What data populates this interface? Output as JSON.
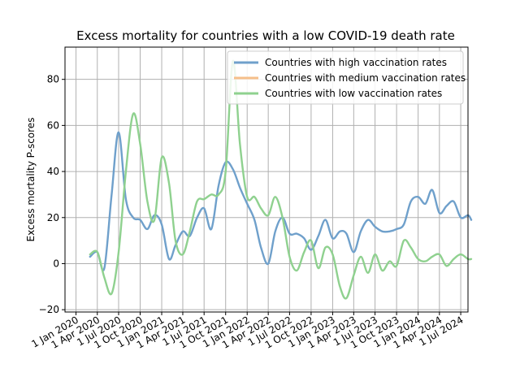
{
  "chart_data": {
    "type": "line",
    "title": "Excess mortality for countries with a low COVID-19 death rate",
    "xlabel": "",
    "ylabel": "Excess mortality P-scores",
    "xlim": [
      "2019-11-15",
      "2024-08-01"
    ],
    "ylim": [
      -21,
      94
    ],
    "x_ticks": [
      {
        "date": "2020-01-01",
        "label": "1 Jan 2020"
      },
      {
        "date": "2020-04-01",
        "label": "1 Apr 2020"
      },
      {
        "date": "2020-07-01",
        "label": "1 Jul 2020"
      },
      {
        "date": "2020-10-01",
        "label": "1 Oct 2020"
      },
      {
        "date": "2021-01-01",
        "label": "1 Jan 2021"
      },
      {
        "date": "2021-04-01",
        "label": "1 Apr 2021"
      },
      {
        "date": "2021-07-01",
        "label": "1 Jul 2021"
      },
      {
        "date": "2021-10-01",
        "label": "1 Oct 2021"
      },
      {
        "date": "2022-01-01",
        "label": "1 Jan 2022"
      },
      {
        "date": "2022-04-01",
        "label": "1 Apr 2022"
      },
      {
        "date": "2022-07-01",
        "label": "1 Jul 2022"
      },
      {
        "date": "2022-10-01",
        "label": "1 Oct 2022"
      },
      {
        "date": "2023-01-01",
        "label": "1 Jan 2023"
      },
      {
        "date": "2023-04-01",
        "label": "1 Apr 2023"
      },
      {
        "date": "2023-07-01",
        "label": "1 Jul 2023"
      },
      {
        "date": "2023-10-01",
        "label": "1 Oct 2023"
      },
      {
        "date": "2024-01-01",
        "label": "1 Jan 2024"
      },
      {
        "date": "2024-04-01",
        "label": "1 Apr 2024"
      },
      {
        "date": "2024-07-01",
        "label": "1 Jul 2024"
      }
    ],
    "y_ticks": [
      {
        "value": -20,
        "label": "−20"
      },
      {
        "value": 0,
        "label": "0"
      },
      {
        "value": 20,
        "label": "20"
      },
      {
        "value": 40,
        "label": "40"
      },
      {
        "value": 60,
        "label": "60"
      },
      {
        "value": 80,
        "label": "80"
      }
    ],
    "grid": true,
    "legend_position": "top-right",
    "series": [
      {
        "name": "Countries with high vaccination rates",
        "color": "#6fa0cb",
        "points": [
          [
            "2020-03-01",
            3
          ],
          [
            "2020-04-01",
            5
          ],
          [
            "2020-05-01",
            -2
          ],
          [
            "2020-06-01",
            30
          ],
          [
            "2020-07-01",
            57
          ],
          [
            "2020-08-01",
            28
          ],
          [
            "2020-09-01",
            20
          ],
          [
            "2020-10-01",
            19
          ],
          [
            "2020-11-01",
            15
          ],
          [
            "2020-12-01",
            21
          ],
          [
            "2021-01-01",
            17
          ],
          [
            "2021-02-01",
            2
          ],
          [
            "2021-03-01",
            8
          ],
          [
            "2021-04-01",
            14
          ],
          [
            "2021-05-01",
            12
          ],
          [
            "2021-06-01",
            20
          ],
          [
            "2021-07-01",
            24
          ],
          [
            "2021-08-01",
            15
          ],
          [
            "2021-09-01",
            34
          ],
          [
            "2021-10-01",
            44
          ],
          [
            "2021-11-01",
            41
          ],
          [
            "2021-12-01",
            33
          ],
          [
            "2022-01-01",
            26
          ],
          [
            "2022-02-01",
            19
          ],
          [
            "2022-03-01",
            7
          ],
          [
            "2022-04-01",
            0
          ],
          [
            "2022-05-01",
            14
          ],
          [
            "2022-06-01",
            20
          ],
          [
            "2022-07-01",
            13
          ],
          [
            "2022-08-01",
            13
          ],
          [
            "2022-09-01",
            11
          ],
          [
            "2022-10-01",
            6
          ],
          [
            "2022-11-01",
            12
          ],
          [
            "2022-12-01",
            19
          ],
          [
            "2023-01-01",
            11
          ],
          [
            "2023-02-01",
            14
          ],
          [
            "2023-03-01",
            13
          ],
          [
            "2023-04-01",
            5
          ],
          [
            "2023-05-01",
            14
          ],
          [
            "2023-06-01",
            19
          ],
          [
            "2023-07-01",
            16
          ],
          [
            "2023-08-01",
            14
          ],
          [
            "2023-09-01",
            14
          ],
          [
            "2023-10-01",
            15
          ],
          [
            "2023-11-01",
            17
          ],
          [
            "2023-12-01",
            27
          ],
          [
            "2024-01-01",
            29
          ],
          [
            "2024-02-01",
            26
          ],
          [
            "2024-03-01",
            32
          ],
          [
            "2024-04-01",
            22
          ],
          [
            "2024-05-01",
            25
          ],
          [
            "2024-06-01",
            27
          ],
          [
            "2024-07-01",
            20
          ],
          [
            "2024-08-01",
            21
          ],
          [
            "2024-08-15",
            19
          ]
        ]
      },
      {
        "name": "Countries with medium vaccination rates",
        "color": "#f6bf8a",
        "points": []
      },
      {
        "name": "Countries with low vaccination rates",
        "color": "#8fd18f",
        "points": [
          [
            "2020-03-01",
            4
          ],
          [
            "2020-04-01",
            5
          ],
          [
            "2020-05-01",
            -6
          ],
          [
            "2020-06-01",
            -13
          ],
          [
            "2020-07-01",
            5
          ],
          [
            "2020-08-01",
            40
          ],
          [
            "2020-09-01",
            65
          ],
          [
            "2020-10-01",
            52
          ],
          [
            "2020-11-01",
            27
          ],
          [
            "2020-12-01",
            19
          ],
          [
            "2021-01-01",
            46
          ],
          [
            "2021-02-01",
            35
          ],
          [
            "2021-03-01",
            10
          ],
          [
            "2021-04-01",
            4
          ],
          [
            "2021-05-01",
            14
          ],
          [
            "2021-06-01",
            27
          ],
          [
            "2021-07-01",
            28
          ],
          [
            "2021-08-01",
            30
          ],
          [
            "2021-09-01",
            30
          ],
          [
            "2021-10-01",
            40
          ],
          [
            "2021-11-01",
            88
          ],
          [
            "2021-12-01",
            52
          ],
          [
            "2022-01-01",
            29
          ],
          [
            "2022-02-01",
            29
          ],
          [
            "2022-03-01",
            24
          ],
          [
            "2022-04-01",
            21
          ],
          [
            "2022-05-01",
            29
          ],
          [
            "2022-06-01",
            20
          ],
          [
            "2022-07-01",
            3
          ],
          [
            "2022-08-01",
            -3
          ],
          [
            "2022-09-01",
            5
          ],
          [
            "2022-10-01",
            10
          ],
          [
            "2022-11-01",
            -2
          ],
          [
            "2022-12-01",
            7
          ],
          [
            "2023-01-01",
            4
          ],
          [
            "2023-02-01",
            -10
          ],
          [
            "2023-03-01",
            -15
          ],
          [
            "2023-04-01",
            -5
          ],
          [
            "2023-05-01",
            3
          ],
          [
            "2023-06-01",
            -4
          ],
          [
            "2023-07-01",
            4
          ],
          [
            "2023-08-01",
            -3
          ],
          [
            "2023-09-01",
            1
          ],
          [
            "2023-10-01",
            -1
          ],
          [
            "2023-11-01",
            10
          ],
          [
            "2023-12-01",
            7
          ],
          [
            "2024-01-01",
            2
          ],
          [
            "2024-02-01",
            1
          ],
          [
            "2024-03-01",
            3
          ],
          [
            "2024-04-01",
            4
          ],
          [
            "2024-05-01",
            -1
          ],
          [
            "2024-06-01",
            2
          ],
          [
            "2024-07-01",
            4
          ],
          [
            "2024-08-01",
            2
          ],
          [
            "2024-08-15",
            2
          ]
        ]
      }
    ]
  }
}
